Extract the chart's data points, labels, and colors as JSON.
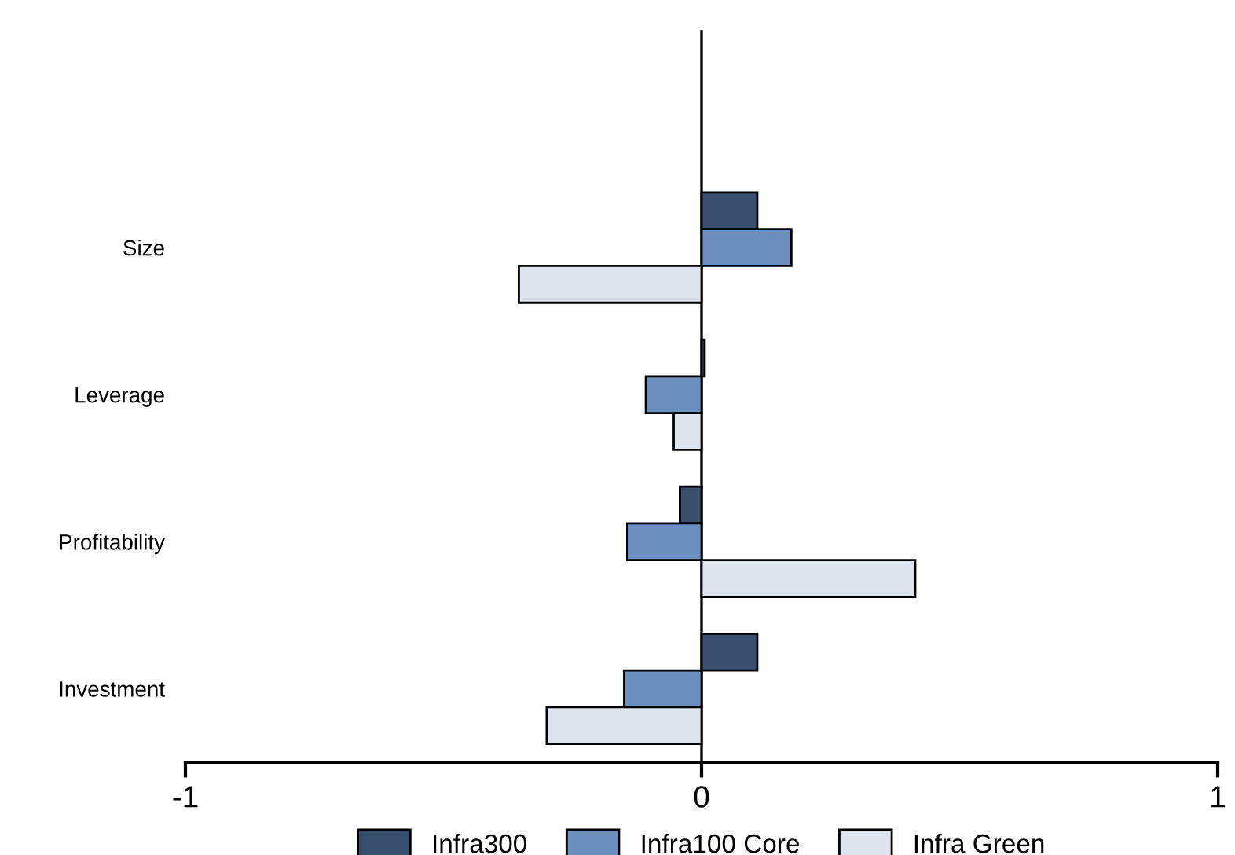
{
  "chart_data": {
    "type": "bar",
    "orientation": "horizontal",
    "categories": [
      "Size",
      "Leverage",
      "Profitability",
      "Investment"
    ],
    "series": [
      {
        "name": "Infra300",
        "color": "#3a4f6e",
        "values": [
          0.108,
          0.006,
          -0.042,
          0.108
        ]
      },
      {
        "name": "Infra100 Core",
        "color": "#6d8fbf",
        "values": [
          0.174,
          -0.108,
          -0.144,
          -0.15
        ]
      },
      {
        "name": "Infra Green",
        "color": "#dfe5ef",
        "values": [
          -0.354,
          -0.054,
          0.414,
          -0.3
        ]
      }
    ],
    "xlim": [
      -1,
      1
    ],
    "xticks": [
      -1,
      0,
      1
    ],
    "legend": "bottom"
  }
}
